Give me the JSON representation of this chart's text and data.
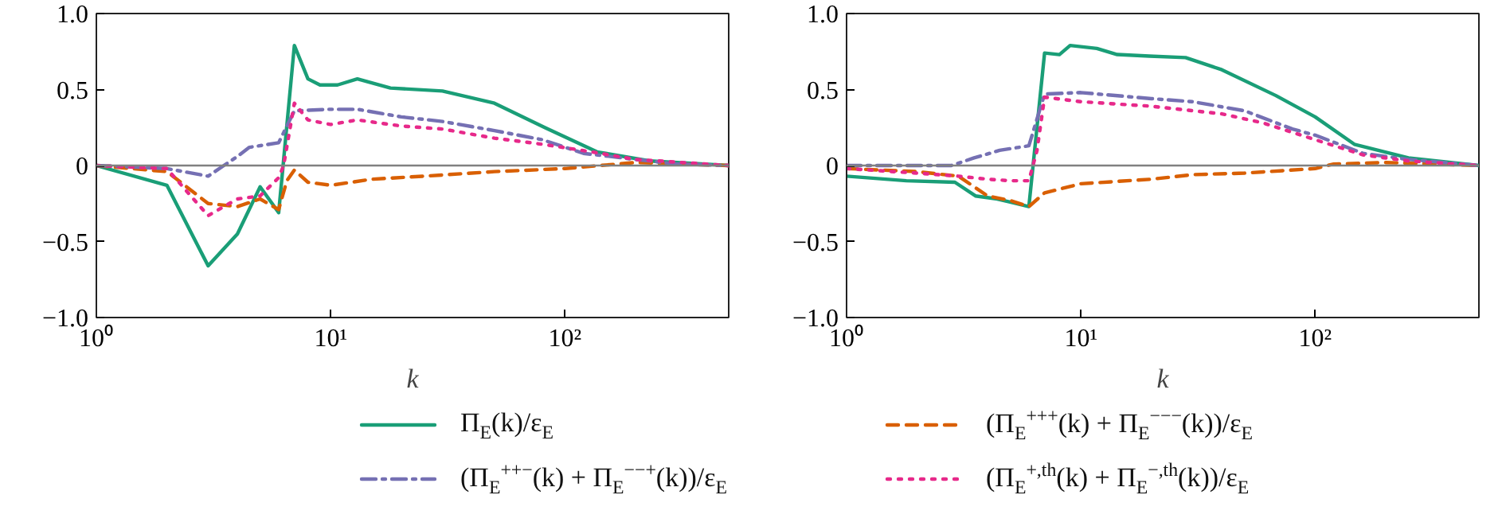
{
  "chart_data": [
    {
      "type": "line",
      "xlabel": "k",
      "log": "x",
      "xlim": [
        1,
        500
      ],
      "ylim": [
        -1.0,
        1.0
      ],
      "xticks": [
        {
          "value": 1,
          "label": "10⁰"
        },
        {
          "value": 10,
          "label": "10¹"
        },
        {
          "value": 100,
          "label": "10²"
        }
      ],
      "yticks": [
        {
          "value": -1.0,
          "label": "−1.0"
        },
        {
          "value": -0.5,
          "label": "−0.5"
        },
        0,
        0.5,
        {
          "value": 1.0,
          "label": "1.0"
        }
      ],
      "grid": false,
      "legend": false,
      "ref_lines": [
        {
          "axis": "y",
          "value": 0,
          "color": "#808080"
        }
      ],
      "series": [
        {
          "color": "#1a9e77",
          "line_style": "solid",
          "x": [
            1,
            2,
            3,
            4,
            5,
            6,
            7,
            8,
            9,
            10.7,
            13,
            18,
            30,
            50,
            82,
            137,
            230,
            500
          ],
          "values": [
            0,
            -0.13,
            -0.66,
            -0.45,
            -0.14,
            -0.31,
            0.79,
            0.57,
            0.53,
            0.53,
            0.57,
            0.51,
            0.49,
            0.41,
            0.25,
            0.09,
            0.03,
            0
          ]
        },
        {
          "color": "#d95f02",
          "line_style": "dashed",
          "x": [
            1,
            2,
            3,
            4,
            5,
            6,
            6.5,
            7,
            8,
            10,
            15,
            25,
            50,
            100,
            200,
            300,
            500
          ],
          "values": [
            0,
            -0.04,
            -0.25,
            -0.27,
            -0.22,
            -0.29,
            -0.1,
            -0.03,
            -0.11,
            -0.13,
            -0.09,
            -0.07,
            -0.04,
            -0.02,
            0.02,
            0.01,
            0
          ]
        },
        {
          "color": "#7570b3",
          "line_style": "dashdot",
          "x": [
            1,
            2,
            3,
            3.5,
            4,
            4.5,
            6,
            7,
            10,
            13,
            20,
            30,
            50,
            80,
            120,
            200,
            300,
            500
          ],
          "values": [
            0,
            -0.02,
            -0.07,
            0,
            0.06,
            0.12,
            0.15,
            0.36,
            0.37,
            0.37,
            0.32,
            0.29,
            0.23,
            0.17,
            0.08,
            0.04,
            0.01,
            0
          ]
        },
        {
          "color": "#e7298a",
          "line_style": "dotted",
          "x": [
            1,
            2,
            3,
            3.5,
            4,
            5,
            6,
            6.3,
            7,
            8,
            10,
            13,
            20,
            30,
            50,
            80,
            130,
            200,
            500
          ],
          "values": [
            0,
            -0.02,
            -0.33,
            -0.27,
            -0.22,
            -0.2,
            -0.08,
            0,
            0.41,
            0.3,
            0.27,
            0.3,
            0.26,
            0.24,
            0.18,
            0.14,
            0.09,
            0.04,
            0
          ]
        }
      ]
    },
    {
      "type": "line",
      "xlabel": "k",
      "log": "x",
      "xlim": [
        1,
        500
      ],
      "ylim": [
        -1.0,
        1.0
      ],
      "xticks": [
        {
          "value": 1,
          "label": "10⁰"
        },
        {
          "value": 10,
          "label": "10¹"
        },
        {
          "value": 100,
          "label": "10²"
        }
      ],
      "yticks": [
        {
          "value": -1.0,
          "label": "−1.0"
        },
        {
          "value": -0.5,
          "label": "−0.5"
        },
        0,
        0.5,
        {
          "value": 1.0,
          "label": "1.0"
        }
      ],
      "grid": false,
      "legend": "bottom",
      "ref_lines": [
        {
          "axis": "y",
          "value": 0,
          "color": "#808080"
        }
      ],
      "series": [
        {
          "name": "Π$_{E}$(k)/ε$_{E}$",
          "color": "#1a9e77",
          "line_style": "solid",
          "x": [
            1,
            1.8,
            2.9,
            3.55,
            4.4,
            6,
            7,
            8.1,
            9,
            11.7,
            14.3,
            19.6,
            28,
            40,
            68,
            100,
            147,
            250,
            500
          ],
          "values": [
            -0.07,
            -0.1,
            -0.11,
            -0.2,
            -0.22,
            -0.27,
            0.74,
            0.73,
            0.79,
            0.77,
            0.73,
            0.72,
            0.71,
            0.63,
            0.46,
            0.32,
            0.14,
            0.05,
            0
          ]
        },
        {
          "name": "(Π$_{E}$$^{+++}$(k) + Π$_{E}$$^{−−−}$(k))/ε$_{E}$",
          "color": "#d95f02",
          "line_style": "dashed",
          "x": [
            1,
            2,
            3,
            4,
            5,
            6,
            7,
            10,
            20,
            30,
            50,
            100,
            120,
            200,
            500
          ],
          "values": [
            -0.02,
            -0.04,
            -0.07,
            -0.2,
            -0.23,
            -0.27,
            -0.18,
            -0.12,
            -0.09,
            -0.06,
            -0.05,
            -0.02,
            0.01,
            0.02,
            0
          ]
        },
        {
          "name": "(Π$_{E}$$^{++−}$(k) + Π$_{E}$$^{−−+}$(k))/ε$_{E}$",
          "color": "#7570b3",
          "line_style": "dashdot",
          "x": [
            1,
            2,
            2.8,
            3.5,
            4.5,
            6,
            7,
            10,
            20,
            30,
            50,
            80,
            100,
            160,
            250,
            500
          ],
          "values": [
            0,
            0,
            0,
            0.05,
            0.1,
            0.13,
            0.47,
            0.48,
            0.44,
            0.42,
            0.36,
            0.24,
            0.2,
            0.08,
            0.04,
            0
          ]
        },
        {
          "name": "(Π$_{E}$$^{+,th}$(k) + Π$_{E}$$^{−,th}$(k))/ε$_{E}$",
          "color": "#e7298a",
          "line_style": "dotted",
          "x": [
            1,
            2,
            3,
            4,
            5,
            6,
            6.5,
            7,
            10,
            20,
            40,
            60,
            100,
            160,
            250,
            500
          ],
          "values": [
            -0.02,
            -0.05,
            -0.07,
            -0.09,
            -0.1,
            -0.1,
            0.1,
            0.45,
            0.42,
            0.39,
            0.34,
            0.28,
            0.17,
            0.07,
            0.03,
            0
          ]
        }
      ]
    }
  ]
}
